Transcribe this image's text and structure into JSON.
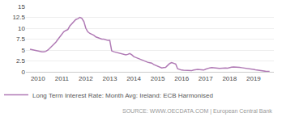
{
  "chart_data": {
    "type": "line",
    "title": "",
    "x": [
      2009.67,
      2009.75,
      2009.83,
      2009.92,
      2010.0,
      2010.08,
      2010.17,
      2010.25,
      2010.33,
      2010.42,
      2010.5,
      2010.58,
      2010.67,
      2010.75,
      2010.83,
      2010.92,
      2011.0,
      2011.08,
      2011.17,
      2011.25,
      2011.33,
      2011.42,
      2011.5,
      2011.58,
      2011.67,
      2011.75,
      2011.83,
      2011.92,
      2012.0,
      2012.08,
      2012.17,
      2012.25,
      2012.33,
      2012.42,
      2012.5,
      2012.58,
      2012.67,
      2012.75,
      2012.83,
      2012.92,
      2013.0,
      2013.08,
      2013.17,
      2013.25,
      2013.33,
      2013.42,
      2013.5,
      2013.58,
      2013.67,
      2013.75,
      2013.83,
      2013.92,
      2014.0,
      2014.08,
      2014.17,
      2014.25,
      2014.33,
      2014.42,
      2014.5,
      2014.58,
      2014.67,
      2014.75,
      2014.83,
      2014.92,
      2015.0,
      2015.08,
      2015.17,
      2015.25,
      2015.33,
      2015.42,
      2015.5,
      2015.58,
      2015.67,
      2015.75,
      2015.83,
      2015.92,
      2016.0,
      2016.08,
      2016.17,
      2016.25,
      2016.33,
      2016.42,
      2016.5,
      2016.58,
      2016.67,
      2016.75,
      2016.83,
      2016.92,
      2017.0,
      2017.08,
      2017.17,
      2017.25,
      2017.33,
      2017.42,
      2017.5,
      2017.58,
      2017.67,
      2017.75,
      2017.83,
      2017.92,
      2018.0,
      2018.08,
      2018.17,
      2018.25,
      2018.33,
      2018.42,
      2018.5,
      2018.58,
      2018.67,
      2018.75,
      2018.83,
      2018.92,
      2019.0,
      2019.08,
      2019.17,
      2019.25,
      2019.33,
      2019.42,
      2019.5,
      2019.58,
      2019.67
    ],
    "series": [
      {
        "name": "Long Term Interest Rate: Month Avg: Ireland: ECB Harmonised",
        "color": "#b07ab5",
        "values": [
          5.2,
          5.1,
          4.9,
          4.8,
          4.8,
          4.7,
          4.6,
          4.6,
          4.7,
          5.0,
          5.4,
          5.8,
          6.3,
          6.8,
          7.4,
          8.1,
          8.6,
          9.2,
          9.5,
          9.7,
          10.5,
          11.0,
          11.5,
          12.0,
          12.2,
          12.5,
          12.3,
          11.5,
          10.0,
          9.2,
          8.8,
          8.6,
          8.4,
          8.0,
          7.8,
          7.6,
          7.5,
          7.5,
          7.3,
          7.2,
          7.2,
          4.8,
          4.6,
          4.5,
          4.3,
          4.2,
          4.1,
          4.0,
          3.9,
          4.0,
          4.2,
          3.9,
          3.5,
          3.3,
          3.1,
          2.9,
          2.7,
          2.5,
          2.4,
          2.2,
          2.1,
          2.0,
          1.7,
          1.5,
          1.3,
          1.1,
          0.9,
          0.95,
          1.0,
          1.5,
          1.9,
          2.1,
          2.0,
          1.8,
          0.7,
          0.5,
          0.4,
          0.35,
          0.3,
          0.28,
          0.25,
          0.3,
          0.4,
          0.5,
          0.55,
          0.5,
          0.45,
          0.4,
          0.6,
          0.8,
          0.9,
          0.95,
          0.95,
          0.9,
          0.85,
          0.8,
          0.85,
          0.9,
          0.9,
          0.85,
          1.0,
          1.05,
          1.1,
          1.1,
          1.05,
          1.0,
          0.95,
          0.9,
          0.85,
          0.8,
          0.7,
          0.65,
          0.55,
          0.45,
          0.35,
          0.3,
          0.2,
          0.15,
          0.12,
          0.1,
          0.08
        ]
      }
    ],
    "xlim": [
      2009.5,
      2019.85
    ],
    "xticks": [
      2010,
      2011,
      2012,
      2013,
      2014,
      2015,
      2016,
      2017,
      2018,
      2019
    ],
    "ylim": [
      0,
      15
    ],
    "yticks": [
      0,
      2.5,
      5,
      7.5,
      10,
      12.5,
      15
    ],
    "grid": "y",
    "legend": "lower left",
    "annotations": [
      {
        "text": "SOURCE: WWW.OECDATA.COM | European Central Bank"
      }
    ]
  }
}
